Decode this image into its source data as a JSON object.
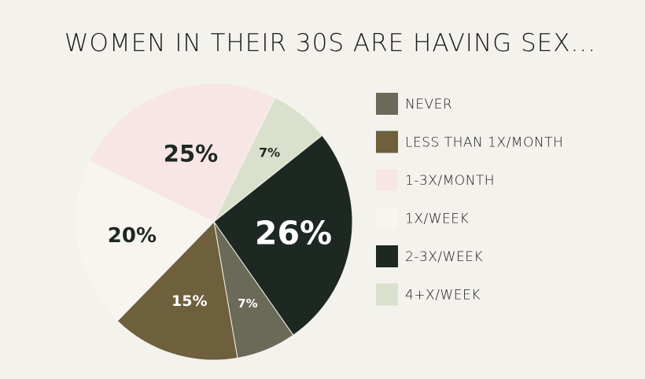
{
  "chart_data": {
    "type": "pie",
    "title": "WOMEN IN THEIR 30S ARE HAVING SEX...",
    "categories": [
      "NEVER",
      "LESS THAN 1X/MONTH",
      "1X/WEEK",
      "1-3X/MONTH",
      "4+X/WEEK",
      "2-3X/WEEK"
    ],
    "values": [
      7,
      15,
      20,
      25,
      7,
      26
    ],
    "value_labels": [
      "7%",
      "15%",
      "20%",
      "25%",
      "7%",
      "26%"
    ],
    "colors": [
      "#6b6a58",
      "#6e5f3d",
      "#f8f5f0",
      "#f8e6e6",
      "#d9e0cb",
      "#1e2822"
    ],
    "label_colors": [
      "#ffffff",
      "#ffffff",
      "#1e2822",
      "#1e2822",
      "#1e2822",
      "#ffffff"
    ],
    "legend": {
      "placement": "right",
      "entries": [
        {
          "label": "NEVER",
          "color": "#6b6a58"
        },
        {
          "label": "LESS THAN 1X/MONTH",
          "color": "#6e5f3d"
        },
        {
          "label": "1-3X/MONTH",
          "color": "#f8e6e6"
        },
        {
          "label": "1X/WEEK",
          "color": "#f8f5f0"
        },
        {
          "label": "2-3X/WEEK",
          "color": "#1e2822"
        },
        {
          "label": "4+X/WEEK",
          "color": "#d9e0cb"
        }
      ]
    }
  }
}
